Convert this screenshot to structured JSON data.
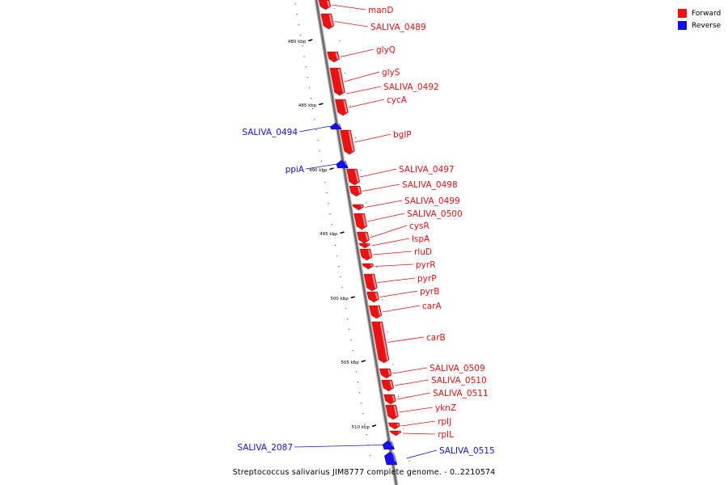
{
  "legend": {
    "forward_label": "Forward",
    "reverse_label": "Reverse",
    "forward_color": "#ee1111",
    "reverse_color": "#1111ee"
  },
  "caption": "Streptococcus salivarius JIM8777 complete genome. - 0..2210574",
  "ticks": [
    "480 kbp",
    "485 kbp",
    "490 kbp",
    "495 kbp",
    "500 kbp",
    "505 kbp",
    "510 kbp"
  ],
  "genes": [
    {
      "name": "manD",
      "strand": "forward"
    },
    {
      "name": "SALIVA_0489",
      "strand": "forward"
    },
    {
      "name": "glyQ",
      "strand": "forward"
    },
    {
      "name": "glyS",
      "strand": "forward"
    },
    {
      "name": "SALIVA_0492",
      "strand": "forward"
    },
    {
      "name": "cycA",
      "strand": "forward"
    },
    {
      "name": "SALIVA_0494",
      "strand": "reverse"
    },
    {
      "name": "bglP",
      "strand": "forward"
    },
    {
      "name": "ppiA",
      "strand": "reverse"
    },
    {
      "name": "SALIVA_0497",
      "strand": "forward"
    },
    {
      "name": "SALIVA_0498",
      "strand": "forward"
    },
    {
      "name": "SALIVA_0499",
      "strand": "forward"
    },
    {
      "name": "SALIVA_0500",
      "strand": "forward"
    },
    {
      "name": "cysR",
      "strand": "forward"
    },
    {
      "name": "lspA",
      "strand": "forward"
    },
    {
      "name": "rluD",
      "strand": "forward"
    },
    {
      "name": "pyrR",
      "strand": "forward"
    },
    {
      "name": "pyrP",
      "strand": "forward"
    },
    {
      "name": "pyrB",
      "strand": "forward"
    },
    {
      "name": "carA",
      "strand": "forward"
    },
    {
      "name": "carB",
      "strand": "forward"
    },
    {
      "name": "SALIVA_0509",
      "strand": "forward"
    },
    {
      "name": "SALIVA_0510",
      "strand": "forward"
    },
    {
      "name": "SALIVA_0511",
      "strand": "forward"
    },
    {
      "name": "yknZ",
      "strand": "forward"
    },
    {
      "name": "rpIJ",
      "strand": "forward"
    },
    {
      "name": "rpIL",
      "strand": "forward"
    },
    {
      "name": "SALIVA_2087",
      "strand": "reverse"
    },
    {
      "name": "SALIVA_0515",
      "strand": "reverse"
    }
  ]
}
